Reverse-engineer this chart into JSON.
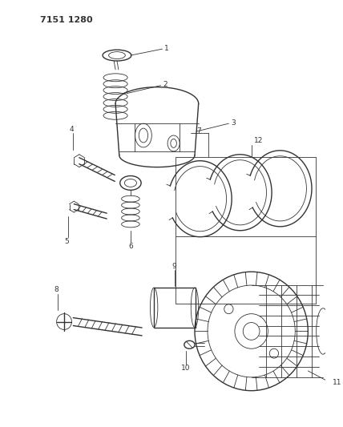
{
  "title": "7151 1280",
  "bg_color": "#ffffff",
  "line_color": "#333333",
  "fig_width": 4.28,
  "fig_height": 5.33,
  "dpi": 100
}
